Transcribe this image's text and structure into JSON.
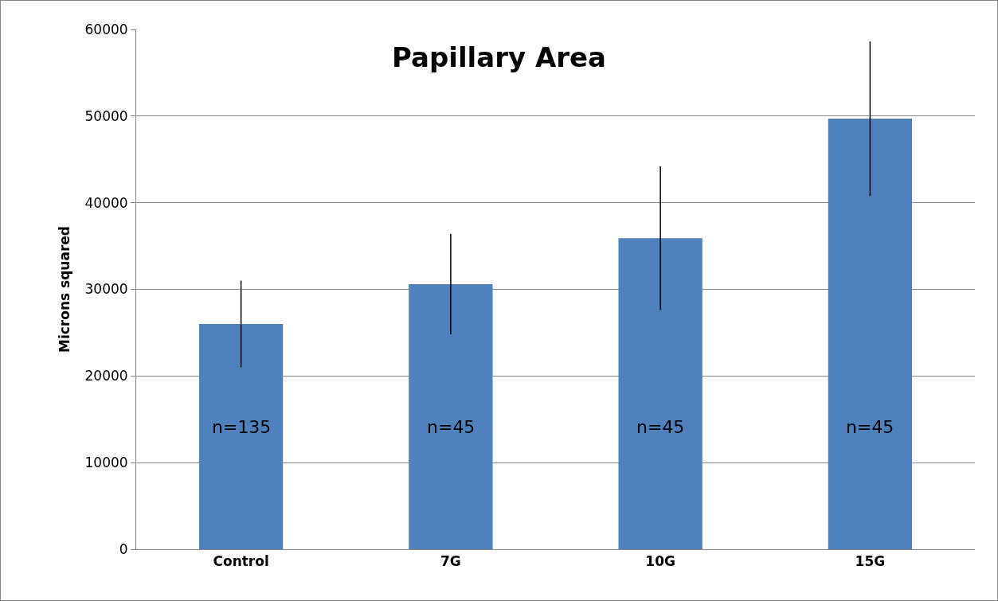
{
  "chart_data": {
    "type": "bar",
    "title": "Papillary Area",
    "ylabel": "Microns squared",
    "categories": [
      "Control",
      "7G",
      "10G",
      "15G"
    ],
    "values": [
      26000,
      30600,
      35900,
      49700
    ],
    "errors": [
      5000,
      5800,
      8300,
      8900
    ],
    "color": "#4f81bd",
    "ylim": [
      0,
      60000
    ],
    "yticks": [
      0,
      10000,
      20000,
      30000,
      40000,
      50000,
      60000
    ],
    "grid": "y",
    "annotations": [
      "n=135",
      "n=45",
      "n=45",
      "n=45"
    ]
  }
}
